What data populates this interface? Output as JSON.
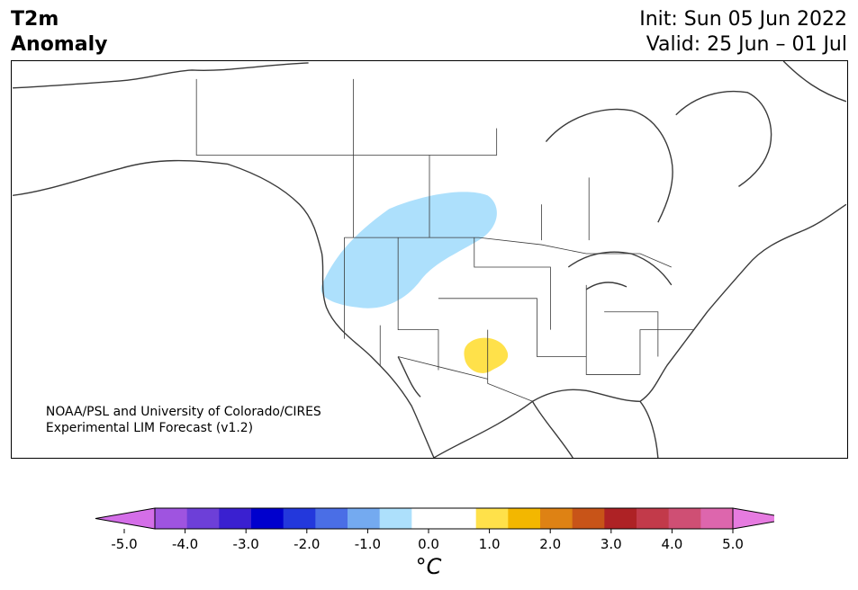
{
  "header": {
    "title_line1": "T2m",
    "title_line2": "Anomaly",
    "init": "Init: Sun 05 Jun 2022",
    "valid": "Valid: 25 Jun – 01 Jul"
  },
  "map": {
    "credit_line1": "NOAA/PSL and University of Colorado/CIRES",
    "credit_line2": "Experimental LIM Forecast (v1.2)",
    "region": "North America",
    "anomaly_areas": [
      {
        "name": "cool-anomaly-northwest",
        "category": "-1.0 to -0.5",
        "color": "#ade0fc"
      },
      {
        "name": "warm-anomaly-southwest",
        "category": "0.5 to 1.0",
        "color": "#ffe14a"
      }
    ]
  },
  "colorbar": {
    "unit": "°C",
    "extend": "both",
    "ticks": [
      "-5.0",
      "-4.0",
      "-3.0",
      "-2.0",
      "-1.0",
      "0.0",
      "1.0",
      "2.0",
      "3.0",
      "4.0",
      "5.0"
    ],
    "colors": [
      "#9f54e0",
      "#6d3fd8",
      "#3a20d0",
      "#0000cd",
      "#2338dc",
      "#4a6ee6",
      "#74aaf0",
      "#ade0fc",
      "#ffffff",
      "#ffffff",
      "#ffe14a",
      "#f3b700",
      "#de8214",
      "#c85418",
      "#ae2225",
      "#c23a4a",
      "#cf4f74",
      "#dd66ad"
    ],
    "end_colors": {
      "low": "#d46ee8",
      "high": "#e67be0"
    }
  }
}
